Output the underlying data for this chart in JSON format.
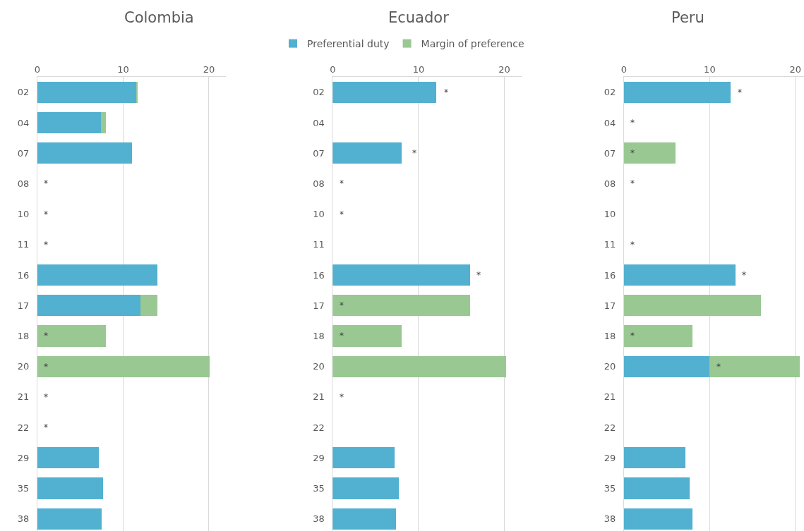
{
  "chart_data": [
    {
      "type": "bar",
      "title": "Colombia",
      "orientation": "horizontal",
      "stacked": true,
      "grid": "x",
      "legend": "top",
      "categories": [
        "02",
        "04",
        "07",
        "08",
        "10",
        "11",
        "16",
        "17",
        "18",
        "20",
        "21",
        "22",
        "29",
        "35",
        "38"
      ],
      "xlim": [
        0,
        22
      ],
      "xticks": [
        0,
        10,
        20
      ],
      "series": [
        {
          "name": "Preferential duty",
          "color": "#52b0d0",
          "values": [
            11.5,
            7.4,
            11.0,
            null,
            null,
            null,
            14.0,
            12.0,
            null,
            null,
            null,
            null,
            7.2,
            7.7,
            7.5
          ]
        },
        {
          "name": "Margin of preference",
          "color": "#9ac893",
          "values": [
            0.2,
            0.6,
            null,
            null,
            null,
            null,
            null,
            2.0,
            8.0,
            20.1,
            null,
            null,
            null,
            null,
            null
          ]
        }
      ],
      "annotations": [
        "*",
        "*",
        "*",
        "*",
        "*",
        "*",
        "*"
      ]
    },
    {
      "type": "bar",
      "title": "Ecuador",
      "orientation": "horizontal",
      "stacked": true,
      "grid": "x",
      "legend": "top",
      "categories": [
        "02",
        "04",
        "07",
        "08",
        "10",
        "11",
        "16",
        "17",
        "18",
        "20",
        "21",
        "22",
        "29",
        "35",
        "38"
      ],
      "xlim": [
        0,
        22
      ],
      "xticks": [
        0,
        10,
        20
      ],
      "series": [
        {
          "name": "Preferential duty",
          "color": "#52b0d0",
          "values": [
            12.1,
            null,
            8.0,
            null,
            null,
            null,
            16.0,
            null,
            null,
            null,
            null,
            null,
            7.2,
            7.7,
            7.4
          ]
        },
        {
          "name": "Margin of preference",
          "color": "#9ac893",
          "values": [
            null,
            null,
            null,
            null,
            null,
            null,
            null,
            16.0,
            8.0,
            20.2,
            null,
            null,
            null,
            null,
            null
          ]
        }
      ],
      "annotations": [
        "*",
        "*",
        "*",
        "*",
        "*",
        "*",
        "*",
        "*"
      ]
    },
    {
      "type": "bar",
      "title": "Peru",
      "orientation": "horizontal",
      "stacked": true,
      "grid": "x",
      "legend": "top",
      "categories": [
        "02",
        "04",
        "07",
        "08",
        "10",
        "11",
        "16",
        "17",
        "18",
        "20",
        "21",
        "22",
        "29",
        "35",
        "38"
      ],
      "xlim": [
        0,
        21
      ],
      "xticks": [
        0,
        10,
        20
      ],
      "series": [
        {
          "name": "Preferential duty",
          "color": "#52b0d0",
          "values": [
            12.4,
            null,
            null,
            null,
            null,
            null,
            13.0,
            null,
            null,
            10.0,
            null,
            null,
            7.2,
            7.7,
            8.0
          ]
        },
        {
          "name": "Margin of preference",
          "color": "#9ac893",
          "values": [
            null,
            null,
            6.0,
            null,
            null,
            null,
            null,
            16.0,
            8.0,
            10.5,
            null,
            null,
            null,
            null,
            null
          ]
        }
      ],
      "annotations": [
        "*",
        "*",
        "*",
        "*",
        "*",
        "*",
        "*",
        "*"
      ]
    }
  ]
}
